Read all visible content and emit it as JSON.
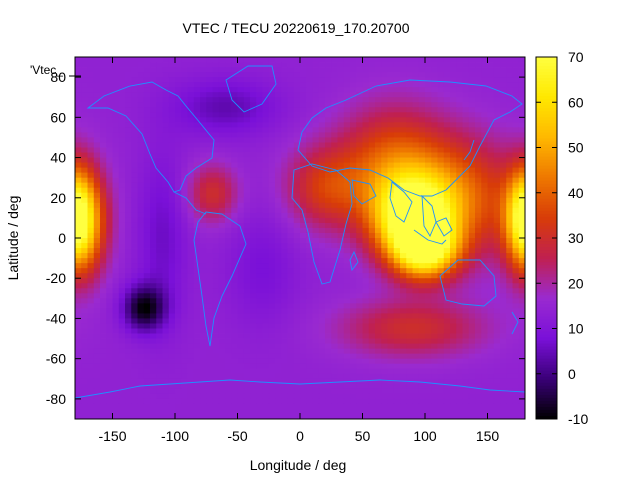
{
  "chart_data": {
    "type": "heatmap",
    "title": "VTEC / TECU 20220619_170.20700",
    "xlabel": "Longitude / deg",
    "ylabel": "Latitude / deg",
    "legend_label": "'Vtec_",
    "xlim": [
      -180,
      180
    ],
    "ylim": [
      -90,
      90
    ],
    "xticks": [
      -150,
      -100,
      -50,
      0,
      50,
      100,
      150
    ],
    "yticks": [
      -80,
      -60,
      -40,
      -20,
      0,
      20,
      40,
      60,
      80
    ],
    "colorbar": {
      "range": [
        -10,
        70
      ],
      "ticks": [
        -10,
        0,
        10,
        20,
        30,
        40,
        50,
        60,
        70
      ],
      "palette": [
        "#000000",
        "#3a0078",
        "#7a10d8",
        "#9a2ad0",
        "#c02050",
        "#d83c08",
        "#ee7800",
        "#ffb800",
        "#ffe800",
        "#ffff40"
      ]
    },
    "grid": "off",
    "background_level": 14,
    "features": [
      {
        "lon": 90,
        "lat": 10,
        "peak": 68,
        "sx": 22,
        "sy": 14
      },
      {
        "lon": 100,
        "lat": -6,
        "peak": 60,
        "sx": 18,
        "sy": 10
      },
      {
        "lon": 75,
        "lat": 35,
        "peak": 40,
        "sx": 30,
        "sy": 20
      },
      {
        "lon": 130,
        "lat": 20,
        "peak": 38,
        "sx": 30,
        "sy": 20
      },
      {
        "lon": 20,
        "lat": 25,
        "peak": 32,
        "sx": 22,
        "sy": 14
      },
      {
        "lon": -70,
        "lat": 22,
        "peak": 30,
        "sx": 14,
        "sy": 10
      },
      {
        "lon": 90,
        "lat": -45,
        "peak": 30,
        "sx": 40,
        "sy": 10
      },
      {
        "lon": -175,
        "lat": 8,
        "peak": 52,
        "sx": 14,
        "sy": 18
      },
      {
        "lon": 180,
        "lat": 10,
        "peak": 42,
        "sx": 10,
        "sy": 16
      },
      {
        "lon": -125,
        "lat": -35,
        "peak": -8,
        "sx": 12,
        "sy": 8
      },
      {
        "lon": -60,
        "lat": 65,
        "peak": 4,
        "sx": 30,
        "sy": 10
      },
      {
        "lon": -110,
        "lat": 0,
        "peak": 6,
        "sx": 14,
        "sy": 30
      },
      {
        "lon": -30,
        "lat": -15,
        "peak": 8,
        "sx": 20,
        "sy": 20
      }
    ]
  }
}
